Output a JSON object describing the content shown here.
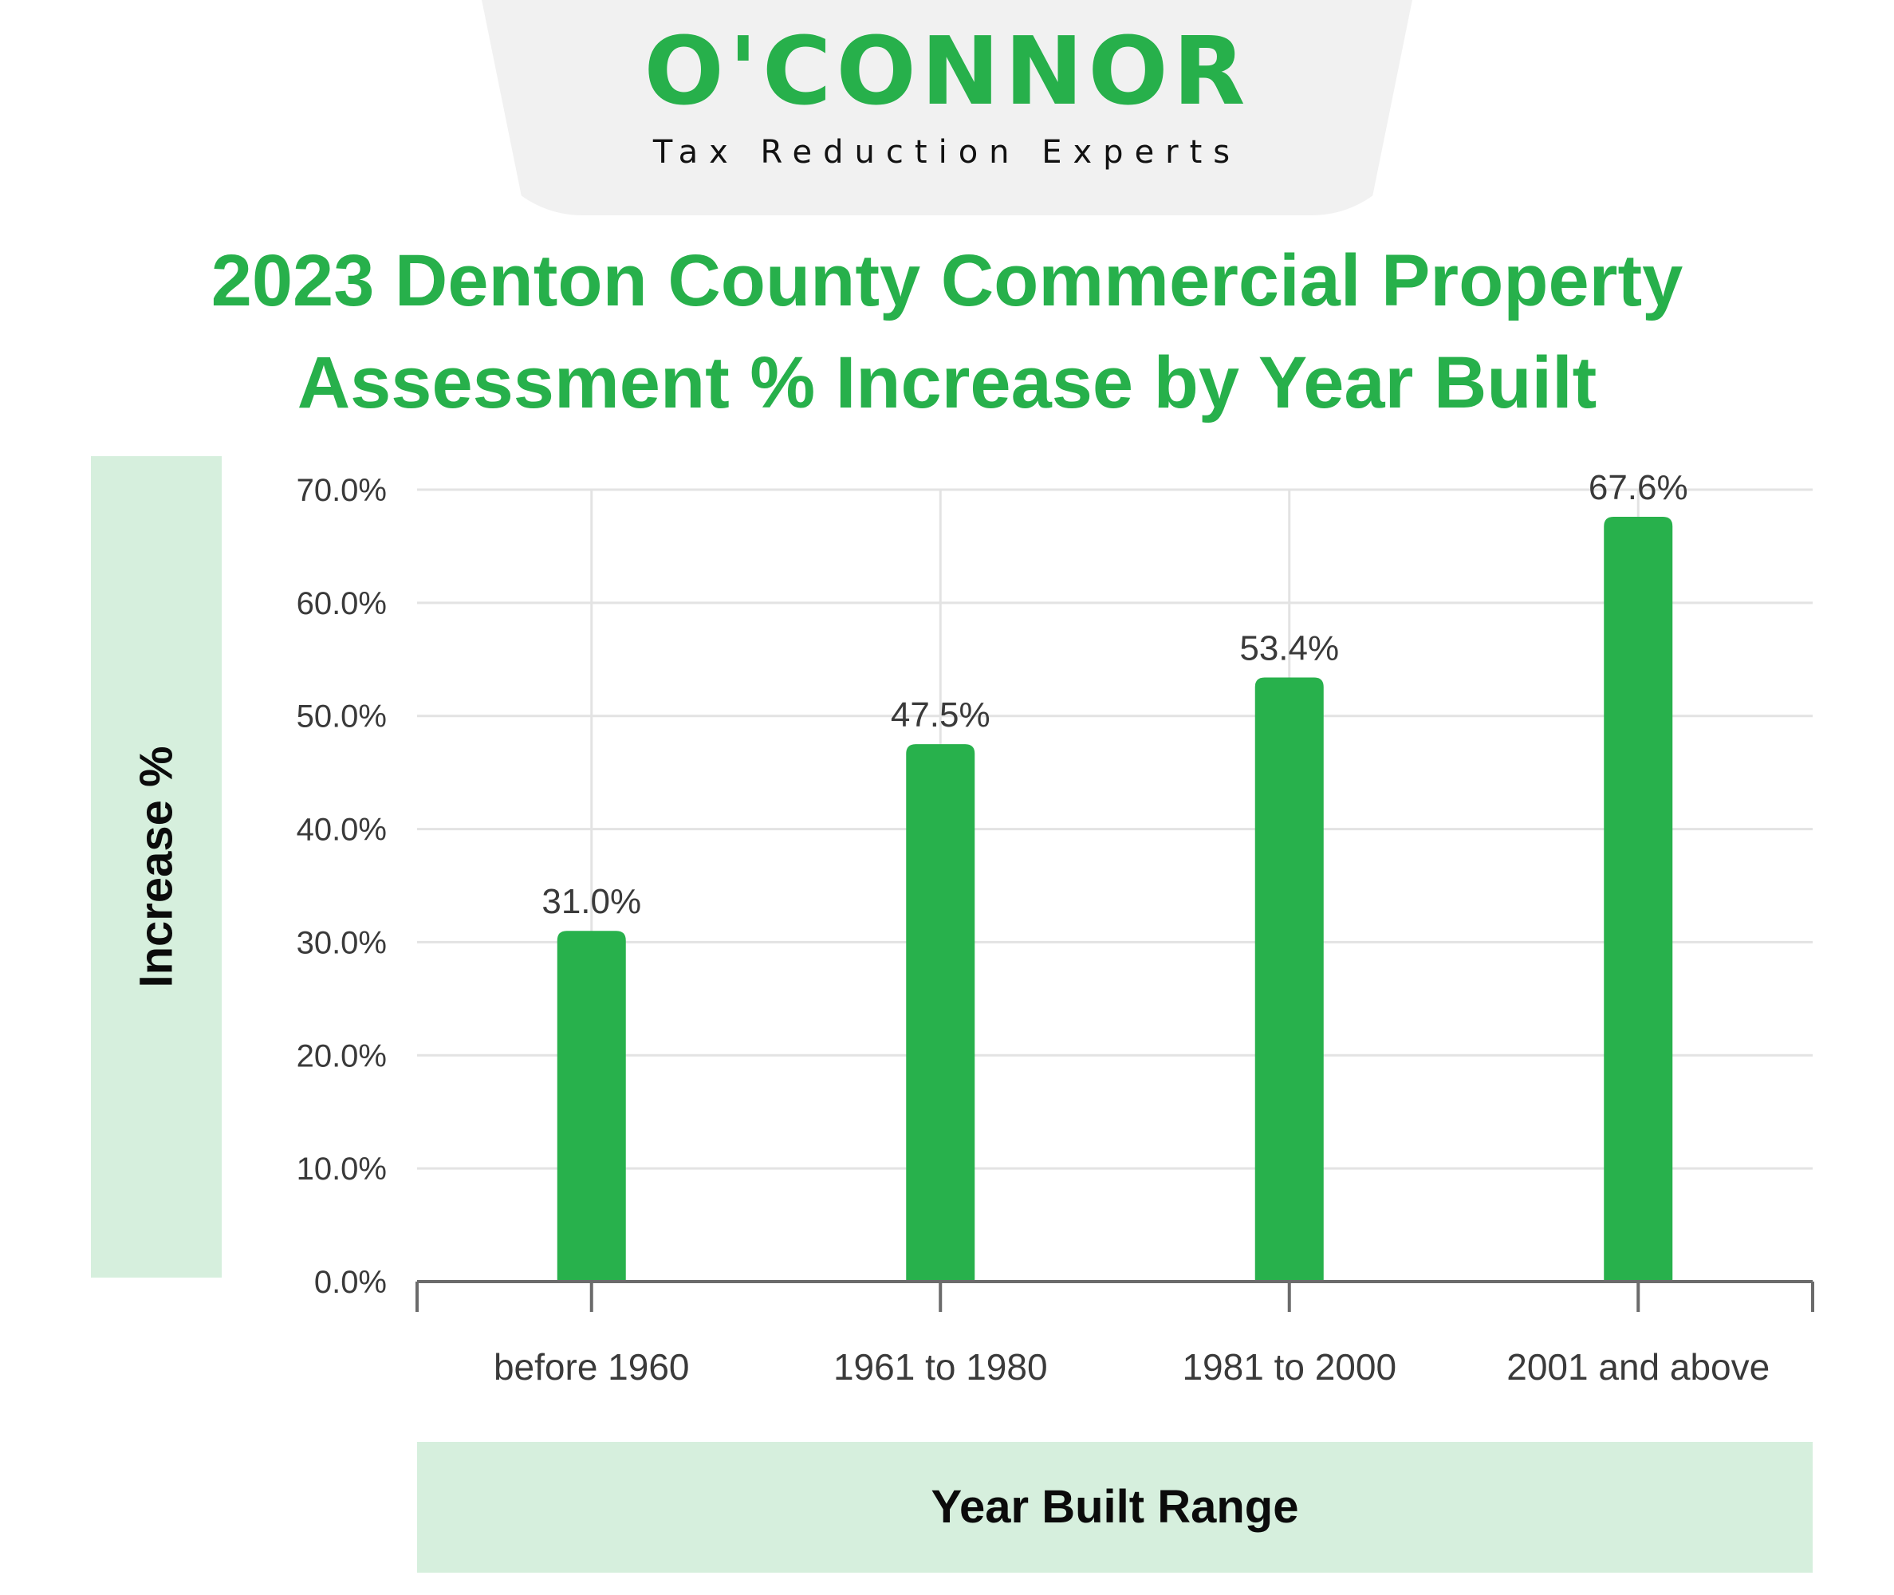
{
  "logo": {
    "wordmark": "O'CONNOR",
    "tagline": "Tax Reduction Experts"
  },
  "colors": {
    "brand_green": "#27b04b",
    "band_green": "#d6efdd",
    "bar_green": "#28b14c",
    "grid": "#e3e3e3",
    "axis": "#6b6b6b",
    "text": "#3a3a3a"
  },
  "chart_data": {
    "type": "bar",
    "title": "2023 Denton County Commercial Property Assessment % Increase by Year Built",
    "xlabel": "Year Built Range",
    "ylabel": "Increase %",
    "categories": [
      "before 1960",
      "1961 to 1980",
      "1981 to 2000",
      "2001 and above"
    ],
    "values": [
      31.0,
      47.5,
      53.4,
      67.6
    ],
    "value_labels": [
      "31.0%",
      "47.5%",
      "53.4%",
      "67.6%"
    ],
    "ylim": [
      0,
      70
    ],
    "yticks": [
      "0.0%",
      "10.0%",
      "20.0%",
      "30.0%",
      "40.0%",
      "50.0%",
      "60.0%",
      "70.0%"
    ],
    "grid": true
  }
}
